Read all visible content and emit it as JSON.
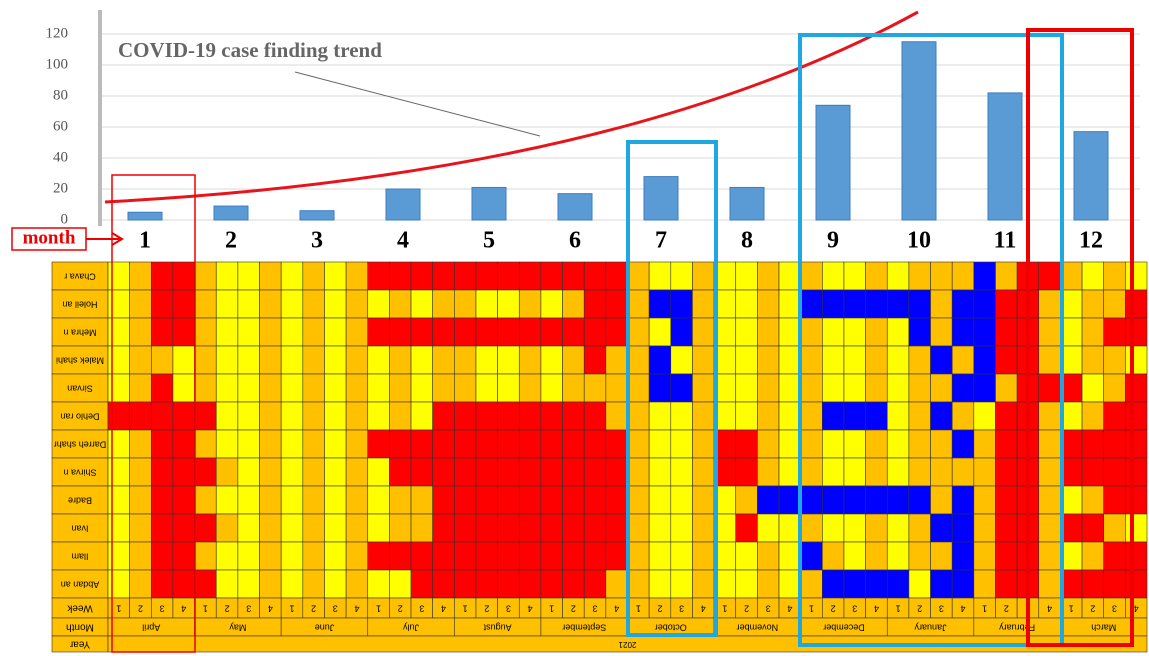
{
  "chart_data": {
    "type": "bar",
    "annotation": "COVID-19 case finding trend",
    "x_label": "month",
    "categories": [
      "1",
      "2",
      "3",
      "4",
      "5",
      "6",
      "7",
      "8",
      "9",
      "10",
      "11",
      "12"
    ],
    "values": [
      5,
      9,
      6,
      20,
      21,
      17,
      28,
      21,
      74,
      115,
      82,
      57
    ],
    "color": "#5b9bd5",
    "ylim": [
      0,
      120
    ],
    "yticks": [
      0,
      20,
      40,
      60,
      80,
      100,
      120
    ],
    "grid": true
  },
  "heatmap": {
    "palette": {
      "Y": "#ffff00",
      "O": "#ffc000",
      "R": "#ff0000",
      "B": "#0000ff"
    },
    "rows": [
      {
        "label": "Chava r",
        "cells": "YORROYYOYOYORRRRRRRRRRRROYYOYYOYOYYOYOOOBORROYOY"
      },
      {
        "label": "Holeil an",
        "cells": "YORROYYOYOYOYOYOOYYOYORROBBOYYOYBBBBBBOBBRROYOOR"
      },
      {
        "label": "Mehra n",
        "cells": "YORROYYOYOYORRRRRRRRRRRROYBOYYOYOYYOYBOBBRROYORR"
      },
      {
        "label": "Malek shahi",
        "cells": "YOOYOYYOYOYOYOYOOYYOYOROOBYOYYOYOYYOYOBOBRROYOOY"
      },
      {
        "label": "Sirvan",
        "cells": "YORYOYYOYOYOYOYOOYYOYOOOOBBOYYOYOYYOYOOBBORRRYOR"
      },
      {
        "label": "Dehlo ran",
        "cells": "RRRRRYYOYOYOYOYRRRRRRRROOYYOYYOYOBBBYOBOYRROYORR"
      },
      {
        "label": "Darreh shahr",
        "cells": "YORROYYOYOYORRRRRRRRRRRROYYORROYOYYOYOOBORRORRRR"
      },
      {
        "label": "Shirva n",
        "cells": "YORRROYOYOYOYRRRRRRRRRRROYYORROYOYYOYOOOORRORRRR"
      },
      {
        "label": "Badre",
        "cells": "YORROYYOYOYOYOORRRRRRRRROYYOYOBBBBBBBBOBORROYORR"
      },
      {
        "label": "Ivan",
        "cells": "YORRROYOYOYOYOORRRRRRRRROYYOYRYYOYYOYOBBORRORROY"
      },
      {
        "label": "Ilam",
        "cells": "YORROYYOYOYORRRRRRRRRRRROYYOYYOYBOYOYOOBORROYORR"
      },
      {
        "label": "Abdan an",
        "cells": "YORRRYYOYOYOYYRRRRRRRRROOYYOYYOYOBBBBYBBORRORRRR"
      }
    ],
    "week_header": "Week",
    "month_header": "Month",
    "year_header": "Year",
    "weeks": [
      "1",
      "2",
      "3",
      "4"
    ],
    "months": [
      "April",
      "May",
      "June",
      "July",
      "August",
      "September",
      "October",
      "November",
      "December",
      "January",
      "February",
      "March"
    ],
    "year": "2021"
  }
}
